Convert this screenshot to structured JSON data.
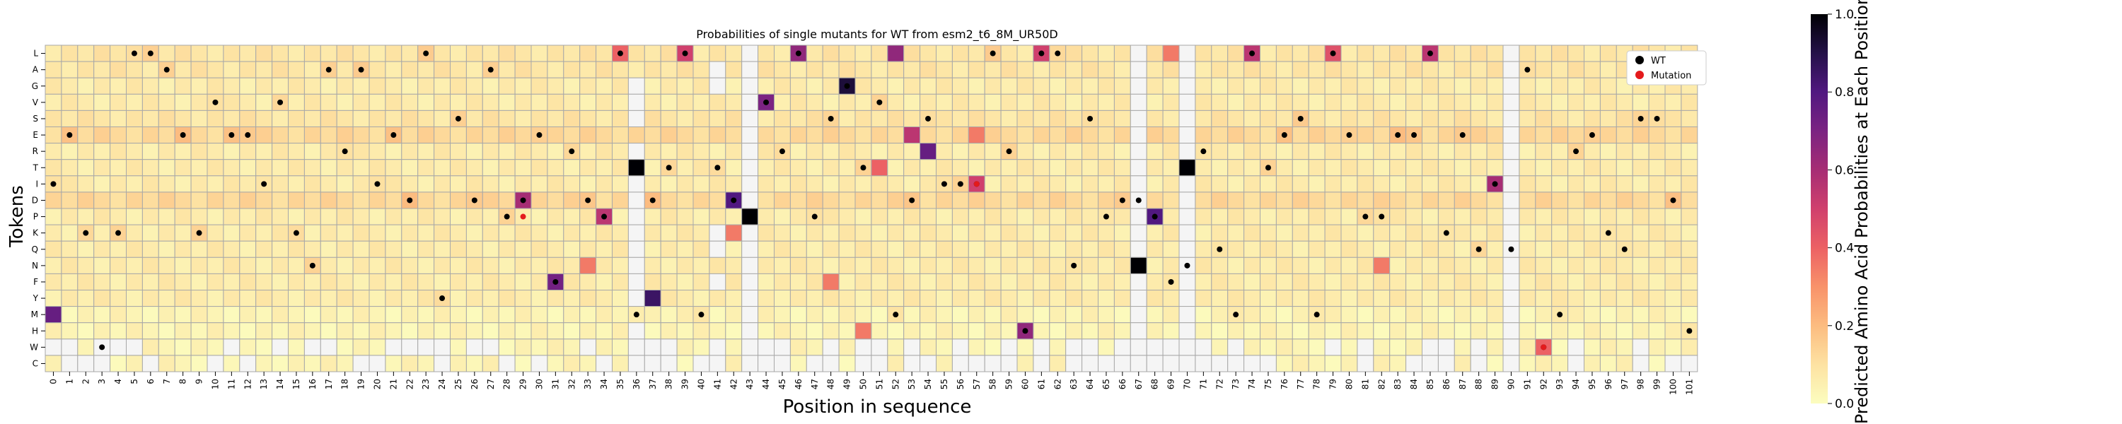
{
  "chart_data": {
    "type": "heatmap",
    "title": "Probabilities of single mutants for WT from esm2_t6_8M_UR50D",
    "xlabel": "Position in sequence",
    "ylabel": "Tokens",
    "tokens": [
      "L",
      "A",
      "G",
      "V",
      "S",
      "E",
      "R",
      "T",
      "I",
      "D",
      "P",
      "K",
      "Q",
      "N",
      "F",
      "Y",
      "M",
      "H",
      "W",
      "C"
    ],
    "positions": [
      0,
      1,
      2,
      3,
      4,
      5,
      6,
      7,
      8,
      9,
      10,
      11,
      12,
      13,
      14,
      15,
      16,
      17,
      18,
      19,
      20,
      21,
      22,
      23,
      24,
      25,
      26,
      27,
      28,
      29,
      30,
      31,
      32,
      33,
      34,
      35,
      36,
      37,
      38,
      39,
      40,
      41,
      42,
      43,
      44,
      45,
      46,
      47,
      48,
      49,
      50,
      51,
      52,
      53,
      54,
      55,
      56,
      57,
      58,
      59,
      60,
      61,
      62,
      63,
      64,
      65,
      66,
      67,
      68,
      69,
      70,
      71,
      72,
      73,
      74,
      75,
      76,
      77,
      78,
      79,
      80,
      81,
      82,
      83,
      84,
      85,
      86,
      87,
      88,
      89,
      90,
      91,
      92,
      93,
      94,
      95,
      96,
      97,
      98,
      99,
      100,
      101
    ],
    "wild_type": [
      "I",
      "E",
      "K",
      "W",
      "K",
      "L",
      "L",
      "A",
      "E",
      "K",
      "V",
      "E",
      "E",
      "I",
      "V",
      "K",
      "N",
      "A",
      "R",
      "A",
      "I",
      "E",
      "D",
      "L",
      "Y",
      "S",
      "D",
      "A",
      "P",
      "D",
      "E",
      "F",
      "R",
      "D",
      "P",
      "L",
      "M",
      "D",
      "T",
      "L",
      "M",
      "T",
      "D",
      "P",
      "V",
      "R",
      "L",
      "P",
      "S",
      "G",
      "T",
      "V",
      "M",
      "D",
      "S",
      "I",
      "I",
      "I",
      "L",
      "R",
      "H",
      "L",
      "L",
      "N",
      "S",
      "P",
      "D",
      "D",
      "P",
      "F",
      "N",
      "R",
      "Q",
      "M",
      "L",
      "T",
      "E",
      "S",
      "M",
      "L",
      "E",
      "P",
      "P",
      "E",
      "E",
      "L",
      "K",
      "E",
      "Q",
      "I",
      "Q",
      "A",
      "W",
      "M",
      "R",
      "E",
      "K",
      "Q",
      "S",
      "S",
      "D",
      "H"
    ],
    "low_cells": [
      [
        "W",
        0
      ],
      [
        "W",
        1
      ],
      [
        "C",
        1
      ],
      [
        "C",
        2
      ],
      [
        "W",
        3
      ],
      [
        "C",
        3
      ],
      [
        "W",
        4
      ],
      [
        "W",
        5
      ],
      [
        "C",
        6
      ],
      [
        "C",
        10
      ],
      [
        "W",
        11
      ],
      [
        "C",
        12
      ],
      [
        "W",
        14
      ],
      [
        "W",
        16
      ],
      [
        "W",
        17
      ],
      [
        "C",
        19
      ],
      [
        "C",
        20
      ],
      [
        "W",
        21
      ],
      [
        "W",
        22
      ],
      [
        "W",
        23
      ],
      [
        "W",
        24
      ],
      [
        "C",
        24
      ],
      [
        "W",
        26
      ],
      [
        "W",
        27
      ],
      [
        "C",
        28
      ],
      [
        "C",
        30
      ],
      [
        "W",
        33
      ],
      [
        "C",
        34
      ],
      [
        "G",
        36
      ],
      [
        "V",
        36
      ],
      [
        "S",
        36
      ],
      [
        "R",
        36
      ],
      [
        "I",
        36
      ],
      [
        "D",
        36
      ],
      [
        "P",
        36
      ],
      [
        "K",
        36
      ],
      [
        "Q",
        36
      ],
      [
        "N",
        36
      ],
      [
        "F",
        36
      ],
      [
        "Y",
        36
      ],
      [
        "H",
        36
      ],
      [
        "W",
        36
      ],
      [
        "C",
        36
      ],
      [
        "W",
        37
      ],
      [
        "C",
        37
      ],
      [
        "W",
        38
      ],
      [
        "C",
        38
      ],
      [
        "C",
        40
      ],
      [
        "A",
        41
      ],
      [
        "G",
        41
      ],
      [
        "K",
        41
      ],
      [
        "Q",
        41
      ],
      [
        "F",
        41
      ],
      [
        "W",
        41
      ],
      [
        "C",
        41
      ],
      [
        "L",
        43
      ],
      [
        "A",
        43
      ],
      [
        "G",
        43
      ],
      [
        "V",
        43
      ],
      [
        "S",
        43
      ],
      [
        "E",
        43
      ],
      [
        "R",
        43
      ],
      [
        "T",
        43
      ],
      [
        "I",
        43
      ],
      [
        "D",
        43
      ],
      [
        "K",
        43
      ],
      [
        "Q",
        43
      ],
      [
        "N",
        43
      ],
      [
        "F",
        43
      ],
      [
        "Y",
        43
      ],
      [
        "M",
        43
      ],
      [
        "H",
        43
      ],
      [
        "W",
        43
      ],
      [
        "C",
        43
      ],
      [
        "W",
        44
      ],
      [
        "C",
        44
      ],
      [
        "W",
        45
      ],
      [
        "C",
        45
      ],
      [
        "C",
        47
      ],
      [
        "W",
        48
      ],
      [
        "C",
        48
      ],
      [
        "W",
        50
      ],
      [
        "C",
        50
      ],
      [
        "W",
        51
      ],
      [
        "C",
        51
      ],
      [
        "W",
        53
      ],
      [
        "C",
        53
      ],
      [
        "C",
        54
      ],
      [
        "W",
        56
      ],
      [
        "C",
        56
      ],
      [
        "C",
        57
      ],
      [
        "C",
        58
      ],
      [
        "W",
        59
      ],
      [
        "C",
        59
      ],
      [
        "W",
        61
      ],
      [
        "C",
        61
      ],
      [
        "W",
        63
      ],
      [
        "C",
        63
      ],
      [
        "W",
        64
      ],
      [
        "C",
        64
      ],
      [
        "C",
        65
      ],
      [
        "W",
        66
      ],
      [
        "C",
        66
      ],
      [
        "L",
        67
      ],
      [
        "A",
        67
      ],
      [
        "G",
        67
      ],
      [
        "V",
        67
      ],
      [
        "S",
        67
      ],
      [
        "E",
        67
      ],
      [
        "R",
        67
      ],
      [
        "T",
        67
      ],
      [
        "I",
        67
      ],
      [
        "D",
        67
      ],
      [
        "P",
        67
      ],
      [
        "K",
        67
      ],
      [
        "Q",
        67
      ],
      [
        "F",
        67
      ],
      [
        "Y",
        67
      ],
      [
        "M",
        67
      ],
      [
        "H",
        67
      ],
      [
        "W",
        67
      ],
      [
        "C",
        67
      ],
      [
        "W",
        68
      ],
      [
        "C",
        68
      ],
      [
        "W",
        69
      ],
      [
        "C",
        69
      ],
      [
        "L",
        70
      ],
      [
        "A",
        70
      ],
      [
        "G",
        70
      ],
      [
        "V",
        70
      ],
      [
        "S",
        70
      ],
      [
        "E",
        70
      ],
      [
        "R",
        70
      ],
      [
        "I",
        70
      ],
      [
        "D",
        70
      ],
      [
        "P",
        70
      ],
      [
        "K",
        70
      ],
      [
        "Q",
        70
      ],
      [
        "N",
        70
      ],
      [
        "F",
        70
      ],
      [
        "Y",
        70
      ],
      [
        "M",
        70
      ],
      [
        "H",
        70
      ],
      [
        "W",
        70
      ],
      [
        "C",
        70
      ],
      [
        "W",
        71
      ],
      [
        "C",
        71
      ],
      [
        "C",
        72
      ],
      [
        "W",
        73
      ],
      [
        "C",
        73
      ],
      [
        "C",
        74
      ],
      [
        "C",
        75
      ],
      [
        "W",
        79
      ],
      [
        "W",
        81
      ],
      [
        "C",
        81
      ],
      [
        "C",
        84
      ],
      [
        "W",
        85
      ],
      [
        "C",
        85
      ],
      [
        "W",
        86
      ],
      [
        "C",
        86
      ],
      [
        "W",
        88
      ],
      [
        "C",
        88
      ],
      [
        "L",
        90
      ],
      [
        "A",
        90
      ],
      [
        "G",
        90
      ],
      [
        "V",
        90
      ],
      [
        "S",
        90
      ],
      [
        "E",
        90
      ],
      [
        "R",
        90
      ],
      [
        "T",
        90
      ],
      [
        "I",
        90
      ],
      [
        "D",
        90
      ],
      [
        "P",
        90
      ],
      [
        "K",
        90
      ],
      [
        "Q",
        90
      ],
      [
        "N",
        90
      ],
      [
        "F",
        90
      ],
      [
        "Y",
        90
      ],
      [
        "M",
        90
      ],
      [
        "H",
        90
      ],
      [
        "W",
        90
      ],
      [
        "C",
        90
      ],
      [
        "W",
        94
      ],
      [
        "C",
        94
      ],
      [
        "W",
        98
      ],
      [
        "C",
        98
      ],
      [
        "C",
        100
      ],
      [
        "C",
        101
      ]
    ],
    "high_cells": [
      {
        "token": "M",
        "position": 0,
        "value": 0.75
      },
      {
        "token": "D",
        "position": 29,
        "value": 0.6
      },
      {
        "token": "F",
        "position": 31,
        "value": 0.72
      },
      {
        "token": "P",
        "position": 34,
        "value": 0.55
      },
      {
        "token": "L",
        "position": 35,
        "value": 0.4
      },
      {
        "token": "T",
        "position": 36,
        "value": 1.0
      },
      {
        "token": "Y",
        "position": 37,
        "value": 0.85
      },
      {
        "token": "L",
        "position": 39,
        "value": 0.5
      },
      {
        "token": "D",
        "position": 42,
        "value": 0.8
      },
      {
        "token": "P",
        "position": 43,
        "value": 1.0
      },
      {
        "token": "V",
        "position": 44,
        "value": 0.7
      },
      {
        "token": "L",
        "position": 46,
        "value": 0.65
      },
      {
        "token": "G",
        "position": 49,
        "value": 0.92
      },
      {
        "token": "L",
        "position": 52,
        "value": 0.65
      },
      {
        "token": "E",
        "position": 53,
        "value": 0.55
      },
      {
        "token": "R",
        "position": 54,
        "value": 0.75
      },
      {
        "token": "I",
        "position": 57,
        "value": 0.5
      },
      {
        "token": "H",
        "position": 60,
        "value": 0.65
      },
      {
        "token": "L",
        "position": 61,
        "value": 0.5
      },
      {
        "token": "N",
        "position": 67,
        "value": 1.0
      },
      {
        "token": "P",
        "position": 68,
        "value": 0.8
      },
      {
        "token": "T",
        "position": 70,
        "value": 1.0
      },
      {
        "token": "L",
        "position": 74,
        "value": 0.55
      },
      {
        "token": "L",
        "position": 79,
        "value": 0.45
      },
      {
        "token": "L",
        "position": 85,
        "value": 0.55
      },
      {
        "token": "I",
        "position": 89,
        "value": 0.6
      },
      {
        "token": "T",
        "position": 51,
        "value": 0.4
      },
      {
        "token": "W",
        "position": 92,
        "value": 0.4
      },
      {
        "token": "N",
        "position": 82,
        "value": 0.35
      },
      {
        "token": "H",
        "position": 50,
        "value": 0.35
      },
      {
        "token": "F",
        "position": 48,
        "value": 0.35
      },
      {
        "token": "L",
        "position": 69,
        "value": 0.35
      },
      {
        "token": "E",
        "position": 57,
        "value": 0.35
      },
      {
        "token": "K",
        "position": 42,
        "value": 0.35
      },
      {
        "token": "N",
        "position": 33,
        "value": 0.35
      }
    ],
    "mutation_points": [
      {
        "token": "P",
        "position": 29
      },
      {
        "token": "I",
        "position": 57
      },
      {
        "token": "W",
        "position": 92
      }
    ],
    "colorbar": {
      "label": "Predicted Amino Acid Probabilities at Each Position",
      "range": [
        0.0,
        1.0
      ],
      "ticks": [
        "0.0",
        "0.2",
        "0.4",
        "0.6",
        "0.8",
        "1.0"
      ],
      "colormap": "magma_r"
    },
    "legend": {
      "position": "top-right",
      "entries": [
        {
          "label": "WT",
          "color": "#000000"
        },
        {
          "label": "Mutation",
          "color": "#e41a1c"
        }
      ]
    },
    "grid": true
  }
}
